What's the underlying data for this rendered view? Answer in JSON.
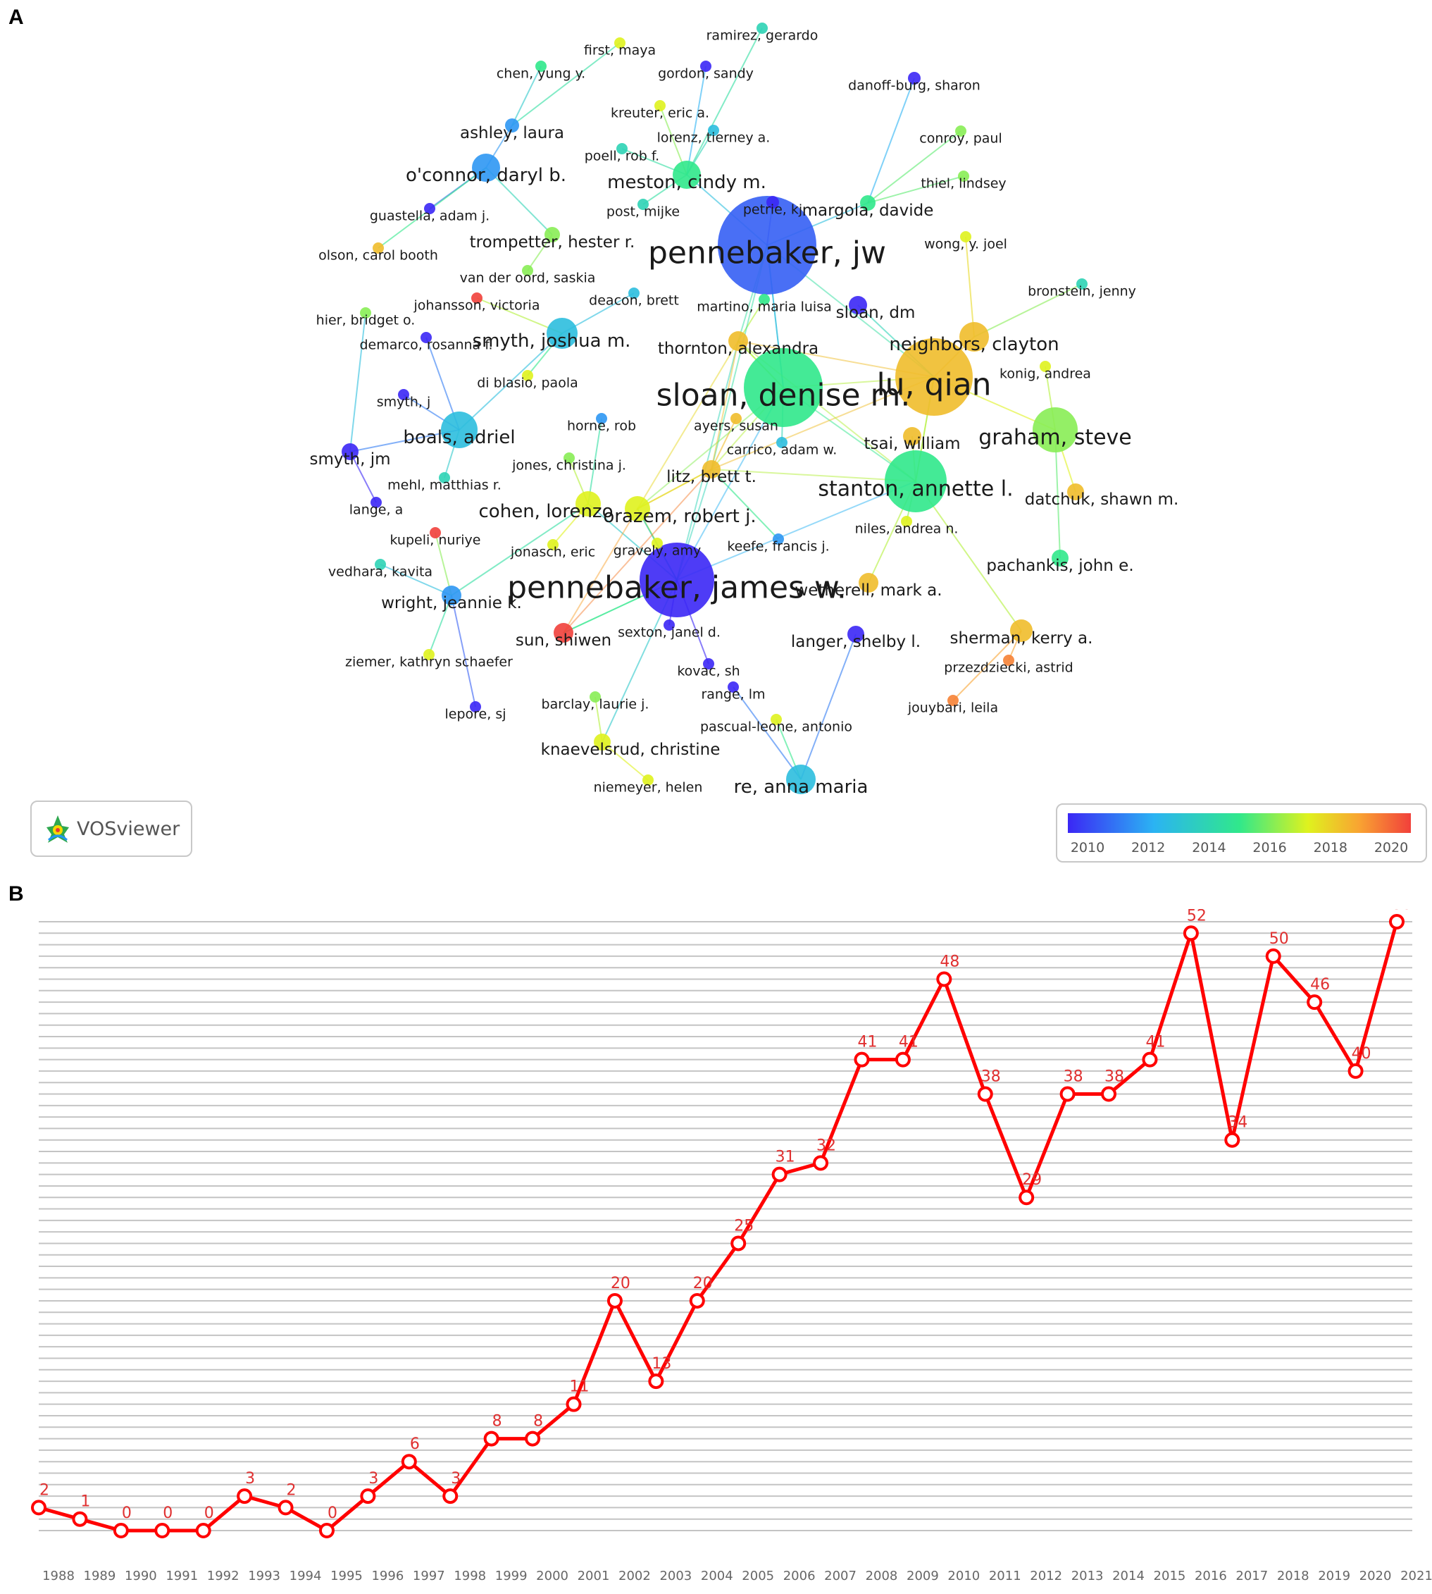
{
  "panels": {
    "a": "A",
    "b": "B"
  },
  "vosviewer_badge": "VOSviewer",
  "chart_data": [
    {
      "type": "network",
      "panel": "A",
      "color_scale": {
        "min_year": 2010,
        "max_year": 2020,
        "ticks": [
          "2010",
          "2012",
          "2014",
          "2016",
          "2018",
          "2020"
        ]
      },
      "nodes": [
        {
          "label": "pennebaker, jw",
          "year": 2011,
          "weight": 10
        },
        {
          "label": "pennebaker, james w.",
          "year": 2010,
          "weight": 9
        },
        {
          "label": "sloan, denise m.",
          "year": 2015,
          "weight": 9
        },
        {
          "label": "lu, qian",
          "year": 2018,
          "weight": 9
        },
        {
          "label": "stanton, annette l.",
          "year": 2015,
          "weight": 6
        },
        {
          "label": "graham, steve",
          "year": 2016,
          "weight": 5
        },
        {
          "label": "boals, adriel",
          "year": 2013,
          "weight": 4
        },
        {
          "label": "smyth, joshua m.",
          "year": 2013,
          "weight": 3
        },
        {
          "label": "neighbors, clayton",
          "year": 2018,
          "weight": 3
        },
        {
          "label": "meston, cindy m.",
          "year": 2015,
          "weight": 3
        },
        {
          "label": "o'connor, daryl b.",
          "year": 2012,
          "weight": 3
        },
        {
          "label": "re, anna maria",
          "year": 2013,
          "weight": 3
        },
        {
          "label": "cohen, lorenzo",
          "year": 2017,
          "weight": 3
        },
        {
          "label": "orazem, robert j.",
          "year": 2017,
          "weight": 3
        },
        {
          "label": "thornton, alexandra",
          "year": 2018,
          "weight": 2
        },
        {
          "label": "wetherell, mark a.",
          "year": 2018,
          "weight": 2
        },
        {
          "label": "sherman, kerry a.",
          "year": 2018,
          "weight": 2
        },
        {
          "label": "litz, brett t.",
          "year": 2018,
          "weight": 2
        },
        {
          "label": "sloan, dm",
          "year": 2010,
          "weight": 2
        },
        {
          "label": "tsai, william",
          "year": 2018,
          "weight": 2
        },
        {
          "label": "langer, shelby l.",
          "year": 2010,
          "weight": 2
        },
        {
          "label": "sun, shiwen",
          "year": 2020,
          "weight": 2
        },
        {
          "label": "knaevelsrud, christine",
          "year": 2017,
          "weight": 2
        },
        {
          "label": "pachankis, john e.",
          "year": 2015,
          "weight": 2
        },
        {
          "label": "datchuk, shawn m.",
          "year": 2018,
          "weight": 2
        },
        {
          "label": "wright, jeannie k.",
          "year": 2012,
          "weight": 2
        },
        {
          "label": "smyth, jm",
          "year": 2010,
          "weight": 2
        },
        {
          "label": "margola, davide",
          "year": 2015,
          "weight": 2
        },
        {
          "label": "trompetter, hester r.",
          "year": 2016,
          "weight": 2
        },
        {
          "label": "ashley, laura",
          "year": 2012,
          "weight": 2
        },
        {
          "label": "petrie, kj",
          "year": 2010,
          "weight": 1
        },
        {
          "label": "ramirez, gerardo",
          "year": 2014,
          "weight": 1
        },
        {
          "label": "first, maya",
          "year": 2017,
          "weight": 1
        },
        {
          "label": "gordon, sandy",
          "year": 2010,
          "weight": 1
        },
        {
          "label": "chen, yung y.",
          "year": 2015,
          "weight": 1
        },
        {
          "label": "danoff-burg, sharon",
          "year": 2010,
          "weight": 1
        },
        {
          "label": "kreuter, eric a.",
          "year": 2017,
          "weight": 1
        },
        {
          "label": "lorenz, tierney a.",
          "year": 2013,
          "weight": 1
        },
        {
          "label": "conroy, paul",
          "year": 2016,
          "weight": 1
        },
        {
          "label": "poell, rob f.",
          "year": 2014,
          "weight": 1
        },
        {
          "label": "thiel, lindsey",
          "year": 2016,
          "weight": 1
        },
        {
          "label": "post, mijke",
          "year": 2014,
          "weight": 1
        },
        {
          "label": "guastella, adam j.",
          "year": 2010,
          "weight": 1
        },
        {
          "label": "wong, y. joel",
          "year": 2017,
          "weight": 1
        },
        {
          "label": "olson, carol booth",
          "year": 2018,
          "weight": 1
        },
        {
          "label": "van der oord, saskia",
          "year": 2016,
          "weight": 1
        },
        {
          "label": "bronstein, jenny",
          "year": 2014,
          "weight": 1
        },
        {
          "label": "johansson, victoria",
          "year": 2020,
          "weight": 1
        },
        {
          "label": "deacon, brett",
          "year": 2013,
          "weight": 1
        },
        {
          "label": "martino, maria luisa",
          "year": 2015,
          "weight": 1
        },
        {
          "label": "hier, bridget o.",
          "year": 2016,
          "weight": 1
        },
        {
          "label": "demarco, rosanna f.",
          "year": 2010,
          "weight": 1
        },
        {
          "label": "konig, andrea",
          "year": 2017,
          "weight": 1
        },
        {
          "label": "di blasio, paola",
          "year": 2017,
          "weight": 1
        },
        {
          "label": "smyth, j",
          "year": 2010,
          "weight": 1
        },
        {
          "label": "ayers, susan",
          "year": 2018,
          "weight": 1
        },
        {
          "label": "horne, rob",
          "year": 2012,
          "weight": 1
        },
        {
          "label": "carrico, adam w.",
          "year": 2013,
          "weight": 1
        },
        {
          "label": "jones, christina j.",
          "year": 2016,
          "weight": 1
        },
        {
          "label": "mehl, matthias r.",
          "year": 2014,
          "weight": 1
        },
        {
          "label": "lange, a",
          "year": 2010,
          "weight": 1
        },
        {
          "label": "kupeli, nuriye",
          "year": 2020,
          "weight": 1
        },
        {
          "label": "jonasch, eric",
          "year": 2017,
          "weight": 1
        },
        {
          "label": "gravely, amy",
          "year": 2017,
          "weight": 1
        },
        {
          "label": "keefe, francis j.",
          "year": 2012,
          "weight": 1
        },
        {
          "label": "niles, andrea n.",
          "year": 2017,
          "weight": 1
        },
        {
          "label": "vedhara, kavita",
          "year": 2014,
          "weight": 1
        },
        {
          "label": "sexton, janel d.",
          "year": 2010,
          "weight": 1
        },
        {
          "label": "ziemer, kathryn schaefer",
          "year": 2017,
          "weight": 1
        },
        {
          "label": "przezdziecki, astrid",
          "year": 2019,
          "weight": 1
        },
        {
          "label": "kovac, sh",
          "year": 2010,
          "weight": 1
        },
        {
          "label": "range, lm",
          "year": 2010,
          "weight": 1
        },
        {
          "label": "barclay, laurie j.",
          "year": 2016,
          "weight": 1
        },
        {
          "label": "lepore, sj",
          "year": 2010,
          "weight": 1
        },
        {
          "label": "jouybari, leila",
          "year": 2019,
          "weight": 1
        },
        {
          "label": "pascual-leone, antonio",
          "year": 2017,
          "weight": 1
        },
        {
          "label": "niemeyer, helen",
          "year": 2017,
          "weight": 1
        }
      ]
    },
    {
      "type": "line",
      "panel": "B",
      "x": [
        "1988",
        "1989",
        "1990",
        "1991",
        "1992",
        "1993",
        "1994",
        "1995",
        "1996",
        "1997",
        "1998",
        "1999",
        "2000",
        "2001",
        "2002",
        "2003",
        "2004",
        "2005",
        "2006",
        "2007",
        "2008",
        "2009",
        "2010",
        "2011",
        "2012",
        "2013",
        "2014",
        "2015",
        "2016",
        "2017",
        "2018",
        "2019",
        "2020",
        "2021"
      ],
      "values": [
        2,
        1,
        0,
        0,
        0,
        3,
        2,
        0,
        3,
        6,
        3,
        8,
        8,
        11,
        20,
        13,
        20,
        25,
        31,
        32,
        41,
        41,
        48,
        38,
        29,
        38,
        38,
        41,
        52,
        34,
        50,
        46,
        40,
        53
      ],
      "ylim": [
        0,
        53
      ],
      "grid": true,
      "color": "#ff0000"
    }
  ]
}
